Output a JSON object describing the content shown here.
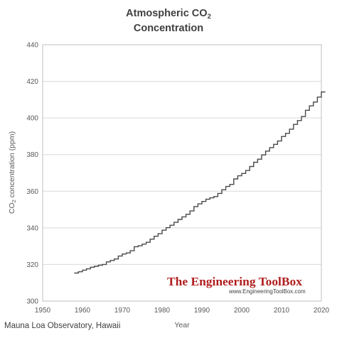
{
  "chart_data": {
    "type": "line",
    "title_main": "Atmospheric CO",
    "title_sub": "2",
    "title_line2": "Concentration",
    "ylabel_main": "CO",
    "ylabel_sub": "2",
    "ylabel_rest": " concentration  (ppm)",
    "xlabel": "Year",
    "xlim": [
      1950,
      2020
    ],
    "ylim": [
      300,
      440
    ],
    "x_ticks": [
      "1950",
      "1960",
      "1970",
      "1980",
      "1990",
      "2000",
      "2010",
      "2020"
    ],
    "y_ticks": [
      "300",
      "320",
      "340",
      "360",
      "380",
      "400",
      "420",
      "440"
    ],
    "grid": "horizontal",
    "step_line": true,
    "line_color": "#4a4a4a",
    "series": [
      {
        "x": [
          1958,
          1959,
          1960,
          1961,
          1962,
          1963,
          1964,
          1965,
          1966,
          1967,
          1968,
          1969,
          1970,
          1971,
          1972,
          1973,
          1974,
          1975,
          1976,
          1977,
          1978,
          1979,
          1980,
          1981,
          1982,
          1983,
          1984,
          1985,
          1986,
          1987,
          1988,
          1989,
          1990,
          1991,
          1992,
          1993,
          1994,
          1995,
          1996,
          1997,
          1998,
          1999,
          2000,
          2001,
          2002,
          2003,
          2004,
          2005,
          2006,
          2007,
          2008,
          2009,
          2010,
          2011,
          2012,
          2013,
          2014,
          2015,
          2016,
          2017,
          2018,
          2019,
          2020
        ],
        "values": [
          315.3,
          316.0,
          316.9,
          317.6,
          318.5,
          319.0,
          319.6,
          320.0,
          321.4,
          322.2,
          323.0,
          324.6,
          325.7,
          326.3,
          327.5,
          329.7,
          330.2,
          331.1,
          332.1,
          333.8,
          335.4,
          336.8,
          338.7,
          340.1,
          341.4,
          343.0,
          344.6,
          346.0,
          347.4,
          349.2,
          351.6,
          353.1,
          354.4,
          355.6,
          356.4,
          357.1,
          358.8,
          360.8,
          362.6,
          363.7,
          366.7,
          368.4,
          369.7,
          371.3,
          373.5,
          375.8,
          377.5,
          379.8,
          381.9,
          383.8,
          385.6,
          387.4,
          389.9,
          391.6,
          393.9,
          396.5,
          398.6,
          400.8,
          404.2,
          406.6,
          408.7,
          411.4,
          414.2
        ]
      }
    ]
  },
  "footer": {
    "source": "Mauna Loa Observatory,  Hawaii"
  },
  "watermark": {
    "title": "The Engineering ToolBox",
    "url": "www.EngineeringToolBox.com",
    "color": "#b01e1e"
  }
}
